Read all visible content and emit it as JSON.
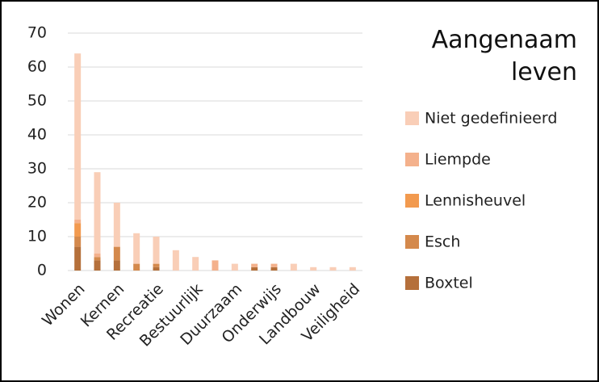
{
  "chart_data": {
    "type": "stacked_bar",
    "title": "Aangenaam leven",
    "categories": [
      "Wonen",
      null,
      "Kernen",
      null,
      "Recreatie",
      null,
      "Bestuurlijk",
      null,
      "Duurzaam",
      null,
      "Onderwijs",
      null,
      "Landbouw",
      null,
      "Veiligheid"
    ],
    "series": [
      {
        "name": "Boxtel",
        "color": "#b5703b",
        "values": [
          7,
          3,
          3,
          0,
          1,
          0,
          0,
          0,
          0,
          1,
          1,
          0,
          0,
          0,
          0
        ]
      },
      {
        "name": "Esch",
        "color": "#d4894c",
        "values": [
          3,
          1,
          4,
          2,
          1,
          0,
          0,
          0,
          0,
          0,
          0,
          0,
          0,
          0,
          0
        ]
      },
      {
        "name": "Lennisheuvel",
        "color": "#f29a4f",
        "values": [
          4,
          0,
          0,
          0,
          0,
          0,
          0,
          0,
          0,
          0,
          0,
          0,
          0,
          0,
          0
        ]
      },
      {
        "name": "Liempde",
        "color": "#f4b18c",
        "values": [
          1,
          1,
          0,
          0,
          0,
          0,
          0,
          3,
          0,
          1,
          1,
          0,
          0,
          0,
          0
        ]
      },
      {
        "name": "Niet gedefinieerd",
        "color": "#f9ceb7",
        "values": [
          49,
          24,
          13,
          9,
          8,
          6,
          4,
          0,
          2,
          0,
          0,
          2,
          1,
          1,
          1
        ]
      }
    ],
    "ylim": [
      0,
      70
    ],
    "yticks": [
      0,
      10,
      20,
      30,
      40,
      50,
      60,
      70
    ],
    "grid": true
  }
}
